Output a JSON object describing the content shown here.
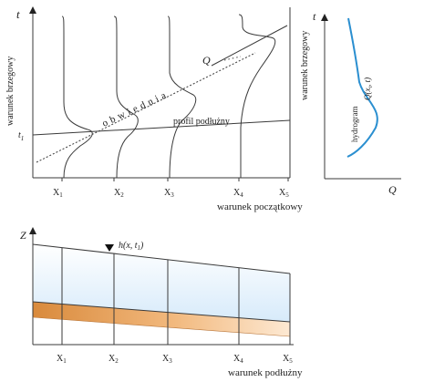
{
  "top_left": {
    "y_axis": "t",
    "boundary_label": "warunek brzegowy",
    "t1_label": "t",
    "t1_sub": "1",
    "envelope_label": "o b w i e d n i a",
    "q_label": "Q",
    "profile_label": "profil podłużny",
    "x_ticks": [
      {
        "text": "X",
        "sub": "1"
      },
      {
        "text": "X",
        "sub": "2"
      },
      {
        "text": "X",
        "sub": "3"
      },
      {
        "text": "X",
        "sub": "4"
      },
      {
        "text": "X",
        "sub": "5"
      }
    ],
    "initial_label": "warunek początkowy"
  },
  "top_right": {
    "y_axis": "t",
    "x_axis": "Q",
    "q_label": "Q(x",
    "q_sub": "i",
    "q_tail": ", t)",
    "hydrograph_label": "hydrogram"
  },
  "bottom": {
    "z_axis": "Z",
    "h_label": "h(x, t",
    "h_sub": "1",
    "h_tail": ")",
    "x_ticks": [
      {
        "text": "X",
        "sub": "1"
      },
      {
        "text": "X",
        "sub": "2"
      },
      {
        "text": "X",
        "sub": "3"
      },
      {
        "text": "X",
        "sub": "4"
      },
      {
        "text": "X",
        "sub": "5"
      }
    ],
    "longitudinal_label": "warunek podłużny"
  },
  "colors": {
    "line": "#3a3a3a",
    "hydrograph": "#2b8fd0",
    "water_fill": "#dceefb",
    "sediment_dark": "#d9893a",
    "sediment_light": "#fbe3c6"
  }
}
